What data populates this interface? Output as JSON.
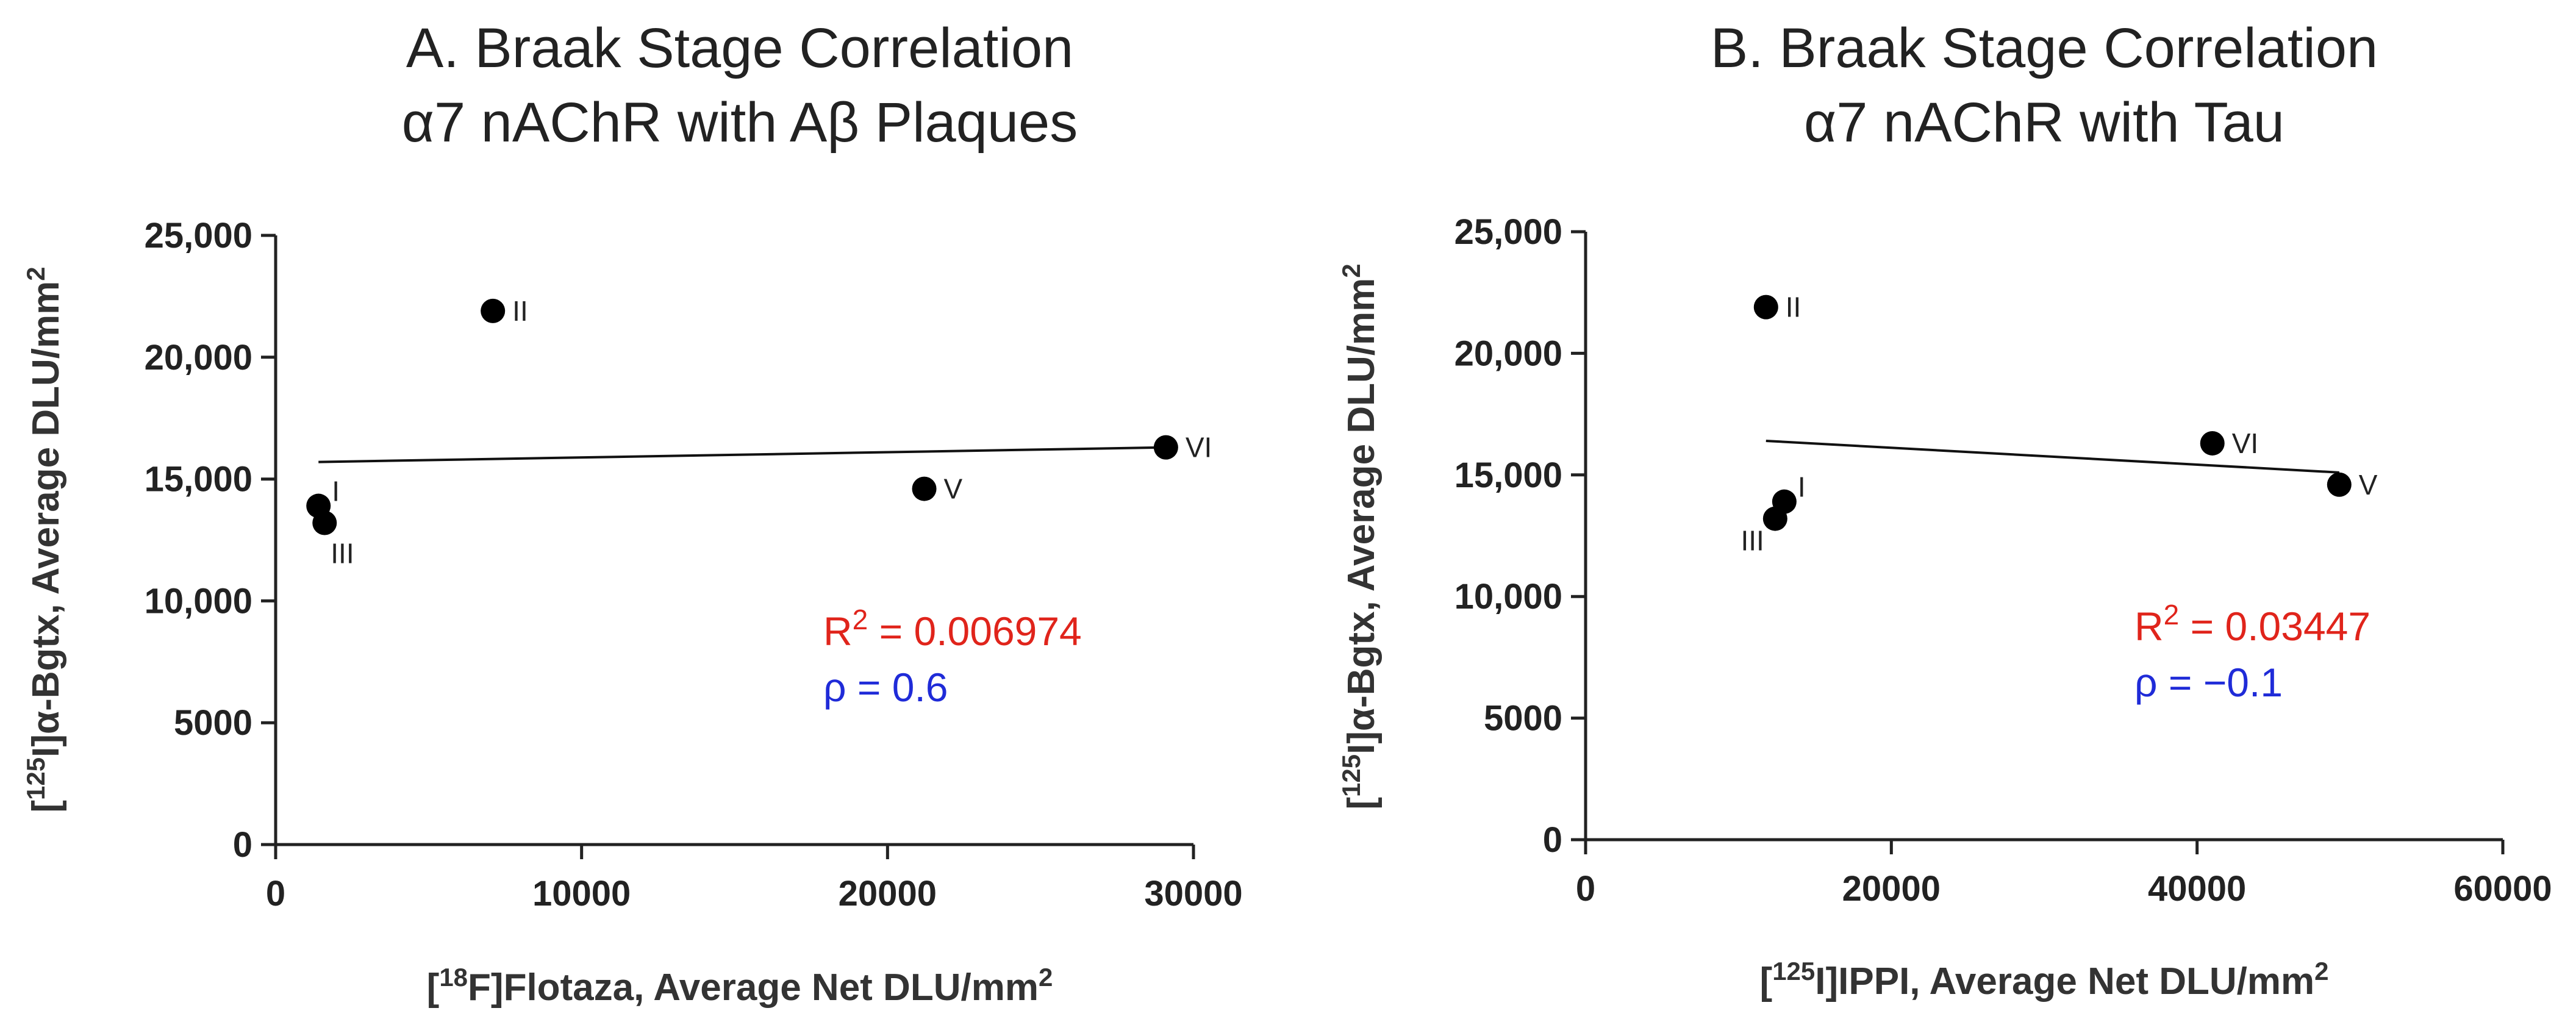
{
  "chart_data": [
    {
      "id": "A",
      "type": "scatter",
      "title": [
        "A. Braak Stage Correlation",
        "α7 nAChR with Aβ Plaques"
      ],
      "xlabel": {
        "pre": "[",
        "sup": "18",
        "mid": "F]Flotaza, Average Net DLU/mm",
        "sup2": "2"
      },
      "ylabel": {
        "pre": "[",
        "sup": "125",
        "mid": "I]α-Bgtx, Average DLU/mm",
        "sup2": "2"
      },
      "xlim": [
        0,
        30000
      ],
      "ylim": [
        0,
        25000
      ],
      "xticks": [
        0,
        10000,
        20000,
        30000
      ],
      "xtick_labels": [
        "0",
        "10000",
        "20000",
        "30000"
      ],
      "yticks": [
        0,
        5000,
        10000,
        15000,
        20000,
        25000
      ],
      "ytick_labels": [
        "0",
        "5000",
        "10,000",
        "15,000",
        "20,000",
        "25,000"
      ],
      "points": [
        {
          "label": "I",
          "x": 1400,
          "y": 13900,
          "pos": "right-up"
        },
        {
          "label": "III",
          "x": 1600,
          "y": 13200,
          "pos": "below"
        },
        {
          "label": "II",
          "x": 7100,
          "y": 21900,
          "pos": "right"
        },
        {
          "label": "V",
          "x": 21200,
          "y": 14600,
          "pos": "right"
        },
        {
          "label": "VI",
          "x": 29100,
          "y": 16300,
          "pos": "right"
        }
      ],
      "fit_line": {
        "x": [
          1400,
          29100
        ],
        "y": [
          15700,
          16300
        ]
      },
      "annotations": {
        "r2_prefix": "R",
        "r2_sup": "2",
        "r2_value": " = 0.006974",
        "rho_text": "ρ = 0.6",
        "r2_color": "#e0241b",
        "rho_color": "#1f2bd8"
      }
    },
    {
      "id": "B",
      "type": "scatter",
      "title": [
        "B. Braak Stage Correlation",
        "α7 nAChR with Tau"
      ],
      "xlabel": {
        "pre": "[",
        "sup": "125",
        "mid": "I]IPPI, Average Net DLU/mm",
        "sup2": "2"
      },
      "ylabel": {
        "pre": "[",
        "sup": "125",
        "mid": "I]α-Bgtx, Average DLU/mm",
        "sup2": "2"
      },
      "xlim": [
        0,
        60000
      ],
      "ylim": [
        0,
        25000
      ],
      "xticks": [
        0,
        20000,
        40000,
        60000
      ],
      "xtick_labels": [
        "0",
        "20000",
        "40000",
        "60000"
      ],
      "yticks": [
        0,
        5000,
        10000,
        15000,
        20000,
        25000
      ],
      "ytick_labels": [
        "0",
        "5000",
        "10,000",
        "15,000",
        "20,000",
        "25,000"
      ],
      "points": [
        {
          "label": "I",
          "x": 13000,
          "y": 13900,
          "pos": "right-up"
        },
        {
          "label": "III",
          "x": 12400,
          "y": 13200,
          "pos": "left-below"
        },
        {
          "label": "II",
          "x": 11800,
          "y": 21900,
          "pos": "right"
        },
        {
          "label": "VI",
          "x": 41000,
          "y": 16300,
          "pos": "right"
        },
        {
          "label": "V",
          "x": 49300,
          "y": 14600,
          "pos": "right"
        }
      ],
      "fit_line": {
        "x": [
          11800,
          49300
        ],
        "y": [
          16400,
          15100
        ]
      },
      "annotations": {
        "r2_prefix": "R",
        "r2_sup": "2",
        "r2_value": " = 0.03447",
        "rho_text": "ρ = −0.1",
        "r2_color": "#e0241b",
        "rho_color": "#1f2bd8"
      }
    }
  ]
}
